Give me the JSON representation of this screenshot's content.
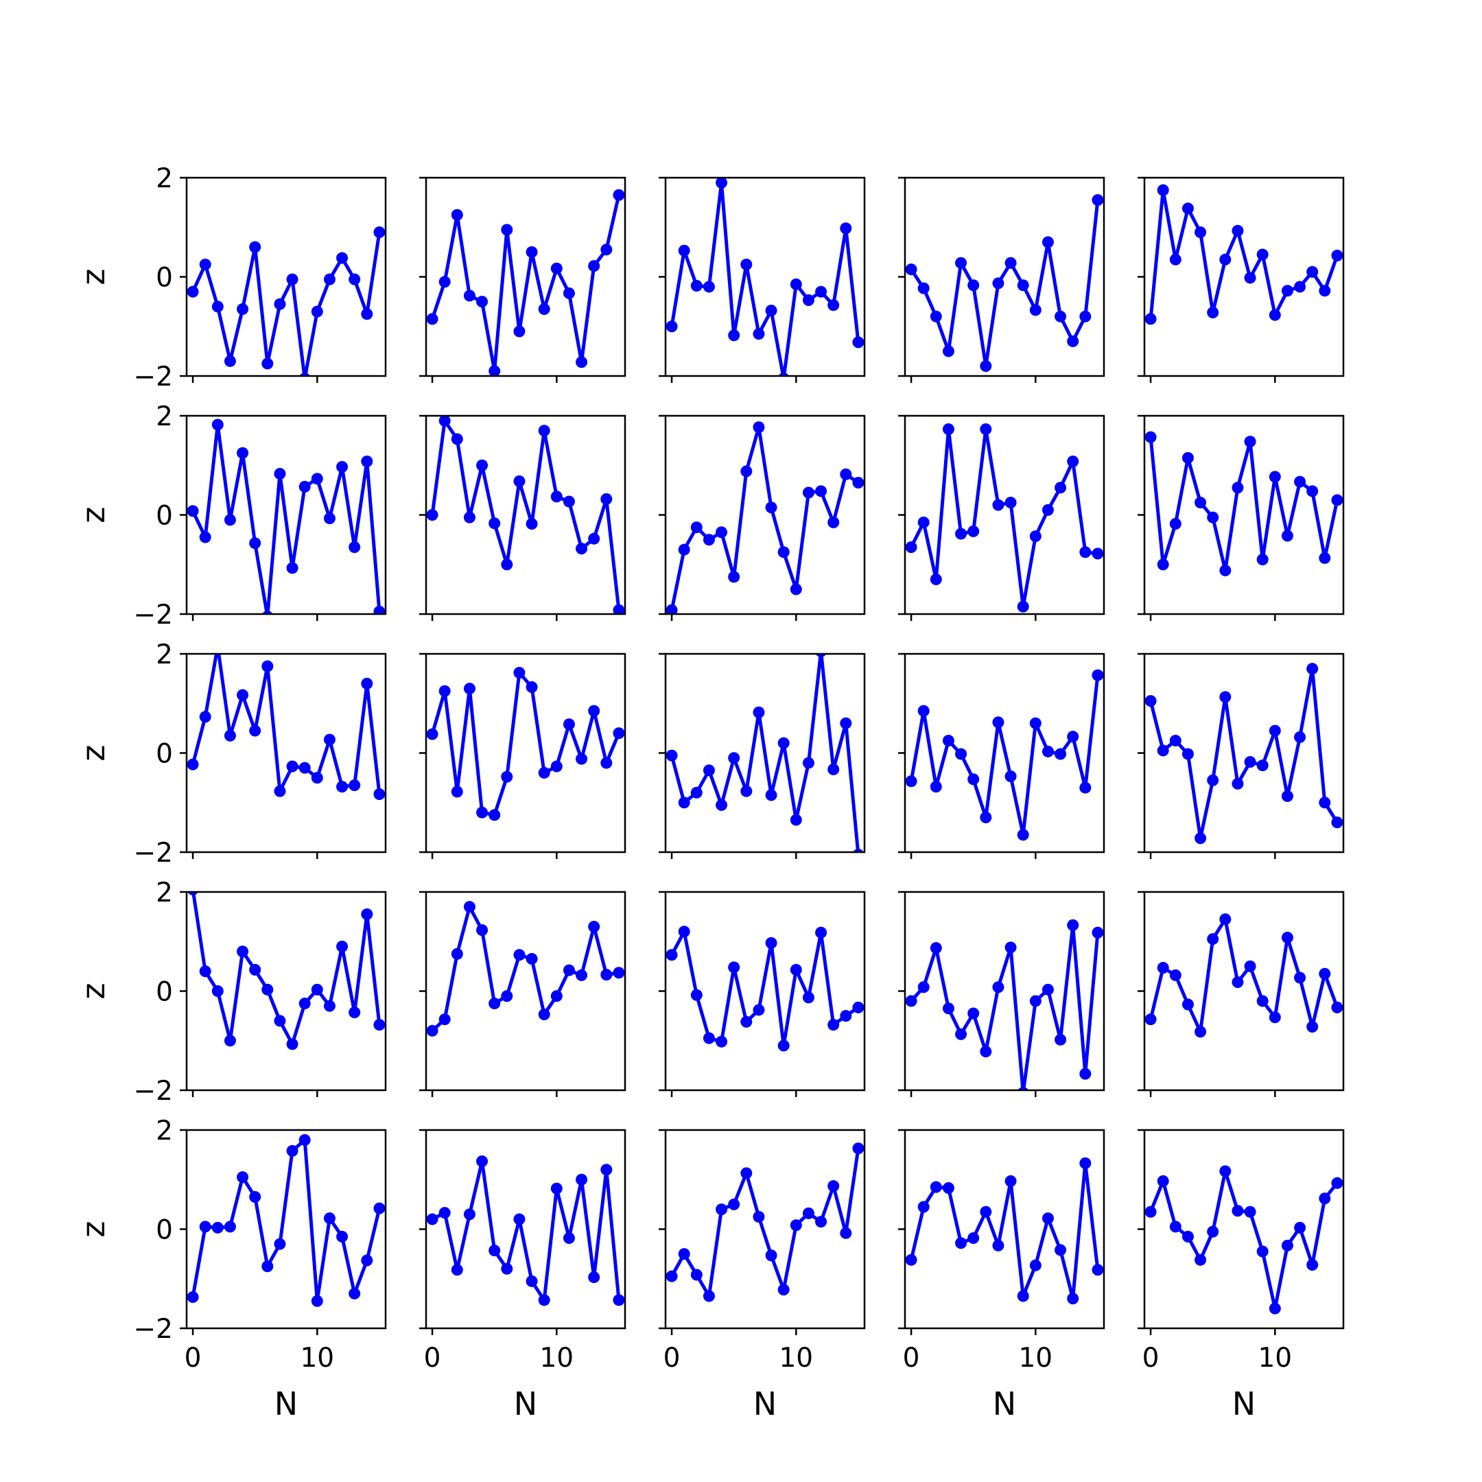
{
  "figure": {
    "line_color": "#0000ff",
    "background": "#ffffff"
  },
  "chart_data": {
    "type": "line",
    "layout": {
      "rows": 5,
      "cols": 5
    },
    "marker": "circle",
    "line_color": "#0000ff",
    "x": [
      0,
      1,
      2,
      3,
      4,
      5,
      6,
      7,
      8,
      9,
      10,
      11,
      12,
      13,
      14,
      15
    ],
    "xlim": [
      -0.5,
      15.5
    ],
    "ylim": [
      -2,
      2
    ],
    "xticks": [
      0,
      10
    ],
    "yticks": [
      -2,
      0,
      2
    ],
    "xticks_labels": [
      "0",
      "10"
    ],
    "yticks_labels": [
      "−2",
      "0",
      "2"
    ],
    "xlabel": "N",
    "ylabel": "z",
    "grid": false,
    "legend": "none",
    "panels": [
      {
        "row": 0,
        "col": 0,
        "values": [
          -0.3,
          0.25,
          -0.6,
          -1.7,
          -0.65,
          0.6,
          -1.75,
          -0.55,
          -0.05,
          -2.05,
          -0.7,
          -0.05,
          0.38,
          -0.05,
          -0.75,
          0.9
        ]
      },
      {
        "row": 0,
        "col": 1,
        "values": [
          -0.85,
          -0.1,
          1.25,
          -0.38,
          -0.5,
          -1.9,
          0.95,
          -1.1,
          0.5,
          -0.65,
          0.17,
          -0.33,
          -1.72,
          0.22,
          0.55,
          1.65
        ]
      },
      {
        "row": 0,
        "col": 2,
        "values": [
          -1.0,
          0.53,
          -0.18,
          -0.2,
          1.9,
          -1.18,
          0.25,
          -1.15,
          -0.68,
          -2.05,
          -0.15,
          -0.47,
          -0.3,
          -0.57,
          0.98,
          -1.32
        ]
      },
      {
        "row": 0,
        "col": 3,
        "values": [
          0.15,
          -0.23,
          -0.8,
          -1.5,
          0.28,
          -0.17,
          -1.8,
          -0.13,
          0.28,
          -0.17,
          -0.67,
          0.7,
          -0.8,
          -1.3,
          -0.8,
          1.55
        ]
      },
      {
        "row": 0,
        "col": 4,
        "values": [
          -0.85,
          1.75,
          0.35,
          1.38,
          0.9,
          -0.72,
          0.35,
          0.93,
          -0.02,
          0.45,
          -0.77,
          -0.28,
          -0.2,
          0.1,
          -0.28,
          0.43
        ]
      },
      {
        "row": 1,
        "col": 0,
        "values": [
          0.08,
          -0.45,
          1.82,
          -0.1,
          1.25,
          -0.57,
          -2.05,
          0.83,
          -1.07,
          0.57,
          0.73,
          -0.07,
          0.97,
          -0.65,
          1.08,
          -1.95
        ]
      },
      {
        "row": 1,
        "col": 1,
        "values": [
          0.0,
          1.9,
          1.53,
          -0.05,
          1.0,
          -0.17,
          -1.0,
          0.68,
          -0.18,
          1.7,
          0.37,
          0.27,
          -0.68,
          -0.48,
          0.32,
          -1.92
        ]
      },
      {
        "row": 1,
        "col": 2,
        "values": [
          -1.92,
          -0.7,
          -0.25,
          -0.5,
          -0.35,
          -1.25,
          0.88,
          1.77,
          0.15,
          -0.75,
          -1.5,
          0.45,
          0.48,
          -0.15,
          0.82,
          0.65
        ]
      },
      {
        "row": 1,
        "col": 3,
        "values": [
          -0.65,
          -0.15,
          -1.3,
          1.73,
          -0.38,
          -0.33,
          1.73,
          0.2,
          0.25,
          -1.85,
          -0.43,
          0.1,
          0.55,
          1.08,
          -0.75,
          -0.78
        ]
      },
      {
        "row": 1,
        "col": 4,
        "values": [
          1.57,
          -1.0,
          -0.18,
          1.15,
          0.25,
          -0.05,
          -1.12,
          0.55,
          1.48,
          -0.9,
          0.77,
          -0.42,
          0.67,
          0.48,
          -0.87,
          0.3
        ]
      },
      {
        "row": 2,
        "col": 0,
        "values": [
          -0.23,
          0.73,
          2.15,
          0.35,
          1.17,
          0.45,
          1.75,
          -0.77,
          -0.27,
          -0.3,
          -0.5,
          0.27,
          -0.68,
          -0.65,
          1.4,
          -0.83
        ]
      },
      {
        "row": 2,
        "col": 1,
        "values": [
          0.38,
          1.25,
          -0.78,
          1.3,
          -1.2,
          -1.25,
          -0.48,
          1.62,
          1.33,
          -0.4,
          -0.27,
          0.58,
          -0.12,
          0.85,
          -0.2,
          0.4
        ]
      },
      {
        "row": 2,
        "col": 2,
        "values": [
          -0.05,
          -1.0,
          -0.8,
          -0.35,
          -1.05,
          -0.1,
          -0.77,
          0.82,
          -0.85,
          0.2,
          -1.35,
          -0.2,
          2.05,
          -0.33,
          0.6,
          -2.05
        ]
      },
      {
        "row": 2,
        "col": 3,
        "values": [
          -0.57,
          0.85,
          -0.68,
          0.25,
          -0.02,
          -0.53,
          -1.3,
          0.62,
          -0.47,
          -1.65,
          0.6,
          0.03,
          -0.02,
          0.33,
          -0.7,
          1.57
        ]
      },
      {
        "row": 2,
        "col": 4,
        "values": [
          1.05,
          0.05,
          0.25,
          -0.02,
          -1.72,
          -0.55,
          1.13,
          -0.62,
          -0.18,
          -0.25,
          0.45,
          -0.87,
          0.32,
          1.7,
          -1.0,
          -1.4
        ]
      },
      {
        "row": 3,
        "col": 0,
        "values": [
          2.05,
          0.4,
          0.0,
          -1.0,
          0.8,
          0.43,
          0.03,
          -0.6,
          -1.07,
          -0.25,
          0.03,
          -0.3,
          0.9,
          -0.43,
          1.55,
          -0.68
        ]
      },
      {
        "row": 3,
        "col": 1,
        "values": [
          -0.8,
          -0.57,
          0.75,
          1.7,
          1.23,
          -0.25,
          -0.1,
          0.73,
          0.65,
          -0.47,
          -0.1,
          0.42,
          0.32,
          1.3,
          0.33,
          0.37
        ]
      },
      {
        "row": 3,
        "col": 2,
        "values": [
          0.73,
          1.2,
          -0.08,
          -0.95,
          -1.02,
          0.48,
          -0.62,
          -0.38,
          0.97,
          -1.1,
          0.43,
          -0.13,
          1.18,
          -0.68,
          -0.5,
          -0.33
        ]
      },
      {
        "row": 3,
        "col": 3,
        "values": [
          -0.2,
          0.08,
          0.87,
          -0.35,
          -0.87,
          -0.45,
          -1.22,
          0.08,
          0.88,
          -2.05,
          -0.2,
          0.03,
          -0.98,
          1.33,
          -1.67,
          1.18
        ]
      },
      {
        "row": 3,
        "col": 4,
        "values": [
          -0.57,
          0.47,
          0.32,
          -0.27,
          -0.82,
          1.05,
          1.45,
          0.18,
          0.5,
          -0.2,
          -0.53,
          1.08,
          0.27,
          -0.72,
          0.35,
          -0.33
        ]
      },
      {
        "row": 4,
        "col": 0,
        "values": [
          -1.37,
          0.05,
          0.03,
          0.05,
          1.05,
          0.65,
          -0.75,
          -0.3,
          1.58,
          1.8,
          -1.45,
          0.22,
          -0.15,
          -1.3,
          -0.63,
          0.42
        ]
      },
      {
        "row": 4,
        "col": 1,
        "values": [
          0.2,
          0.33,
          -0.82,
          0.3,
          1.37,
          -0.43,
          -0.8,
          0.2,
          -1.05,
          -1.43,
          0.82,
          -0.18,
          1.0,
          -0.97,
          1.2,
          -1.43
        ]
      },
      {
        "row": 4,
        "col": 2,
        "values": [
          -0.95,
          -0.5,
          -0.92,
          -1.35,
          0.4,
          0.5,
          1.13,
          0.25,
          -0.53,
          -1.22,
          0.08,
          0.32,
          0.15,
          0.87,
          -0.08,
          1.63
        ]
      },
      {
        "row": 4,
        "col": 3,
        "values": [
          -0.62,
          0.45,
          0.85,
          0.83,
          -0.28,
          -0.18,
          0.35,
          -0.33,
          0.97,
          -1.35,
          -0.73,
          0.22,
          -0.42,
          -1.4,
          1.33,
          -0.82
        ]
      },
      {
        "row": 4,
        "col": 4,
        "values": [
          0.35,
          0.97,
          0.05,
          -0.15,
          -0.62,
          -0.05,
          1.17,
          0.37,
          0.35,
          -0.45,
          -1.6,
          -0.33,
          0.03,
          -0.72,
          0.62,
          0.93
        ]
      }
    ]
  }
}
